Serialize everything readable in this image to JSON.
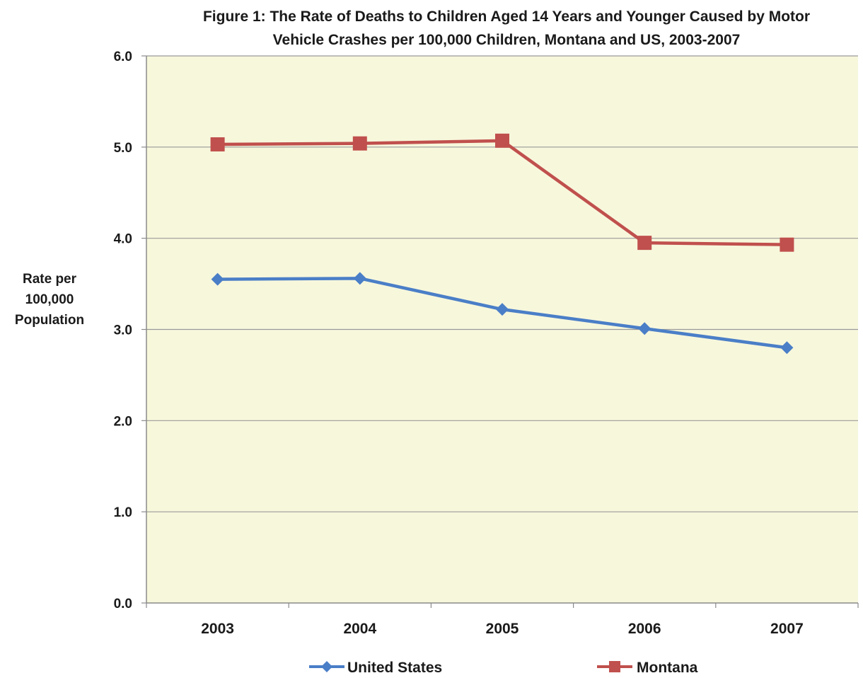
{
  "chart_data": {
    "type": "line",
    "title": "Figure  1: The Rate of Deaths to Children Aged 14 Years and Younger Caused by Motor Vehicle Crashes per 100,000 Children,  Montana and US, 2003-2007",
    "title_lines": [
      "Figure  1: The Rate of Deaths to Children Aged 14 Years and Younger Caused by Motor",
      "Vehicle Crashes per 100,000 Children,  Montana and US, 2003-2007"
    ],
    "ylabel_lines": [
      "Rate per",
      "100,000",
      "Population"
    ],
    "xlabel": "",
    "categories": [
      "2003",
      "2004",
      "2005",
      "2006",
      "2007"
    ],
    "ylim": [
      0,
      6
    ],
    "yticks": [
      0,
      1,
      2,
      3,
      4,
      5,
      6
    ],
    "ytick_labels": [
      "0.0",
      "1.0",
      "2.0",
      "3.0",
      "4.0",
      "5.0",
      "6.0"
    ],
    "grid": true,
    "plot_background": "#f7f7dc",
    "legend_position": "bottom",
    "series": [
      {
        "name": "United States",
        "marker": "diamond",
        "color": "#4a7ec7",
        "values": [
          3.55,
          3.56,
          3.22,
          3.01,
          2.8
        ]
      },
      {
        "name": "Montana",
        "marker": "square",
        "color": "#c0504d",
        "values": [
          5.03,
          5.04,
          5.07,
          3.95,
          3.93
        ]
      }
    ]
  }
}
